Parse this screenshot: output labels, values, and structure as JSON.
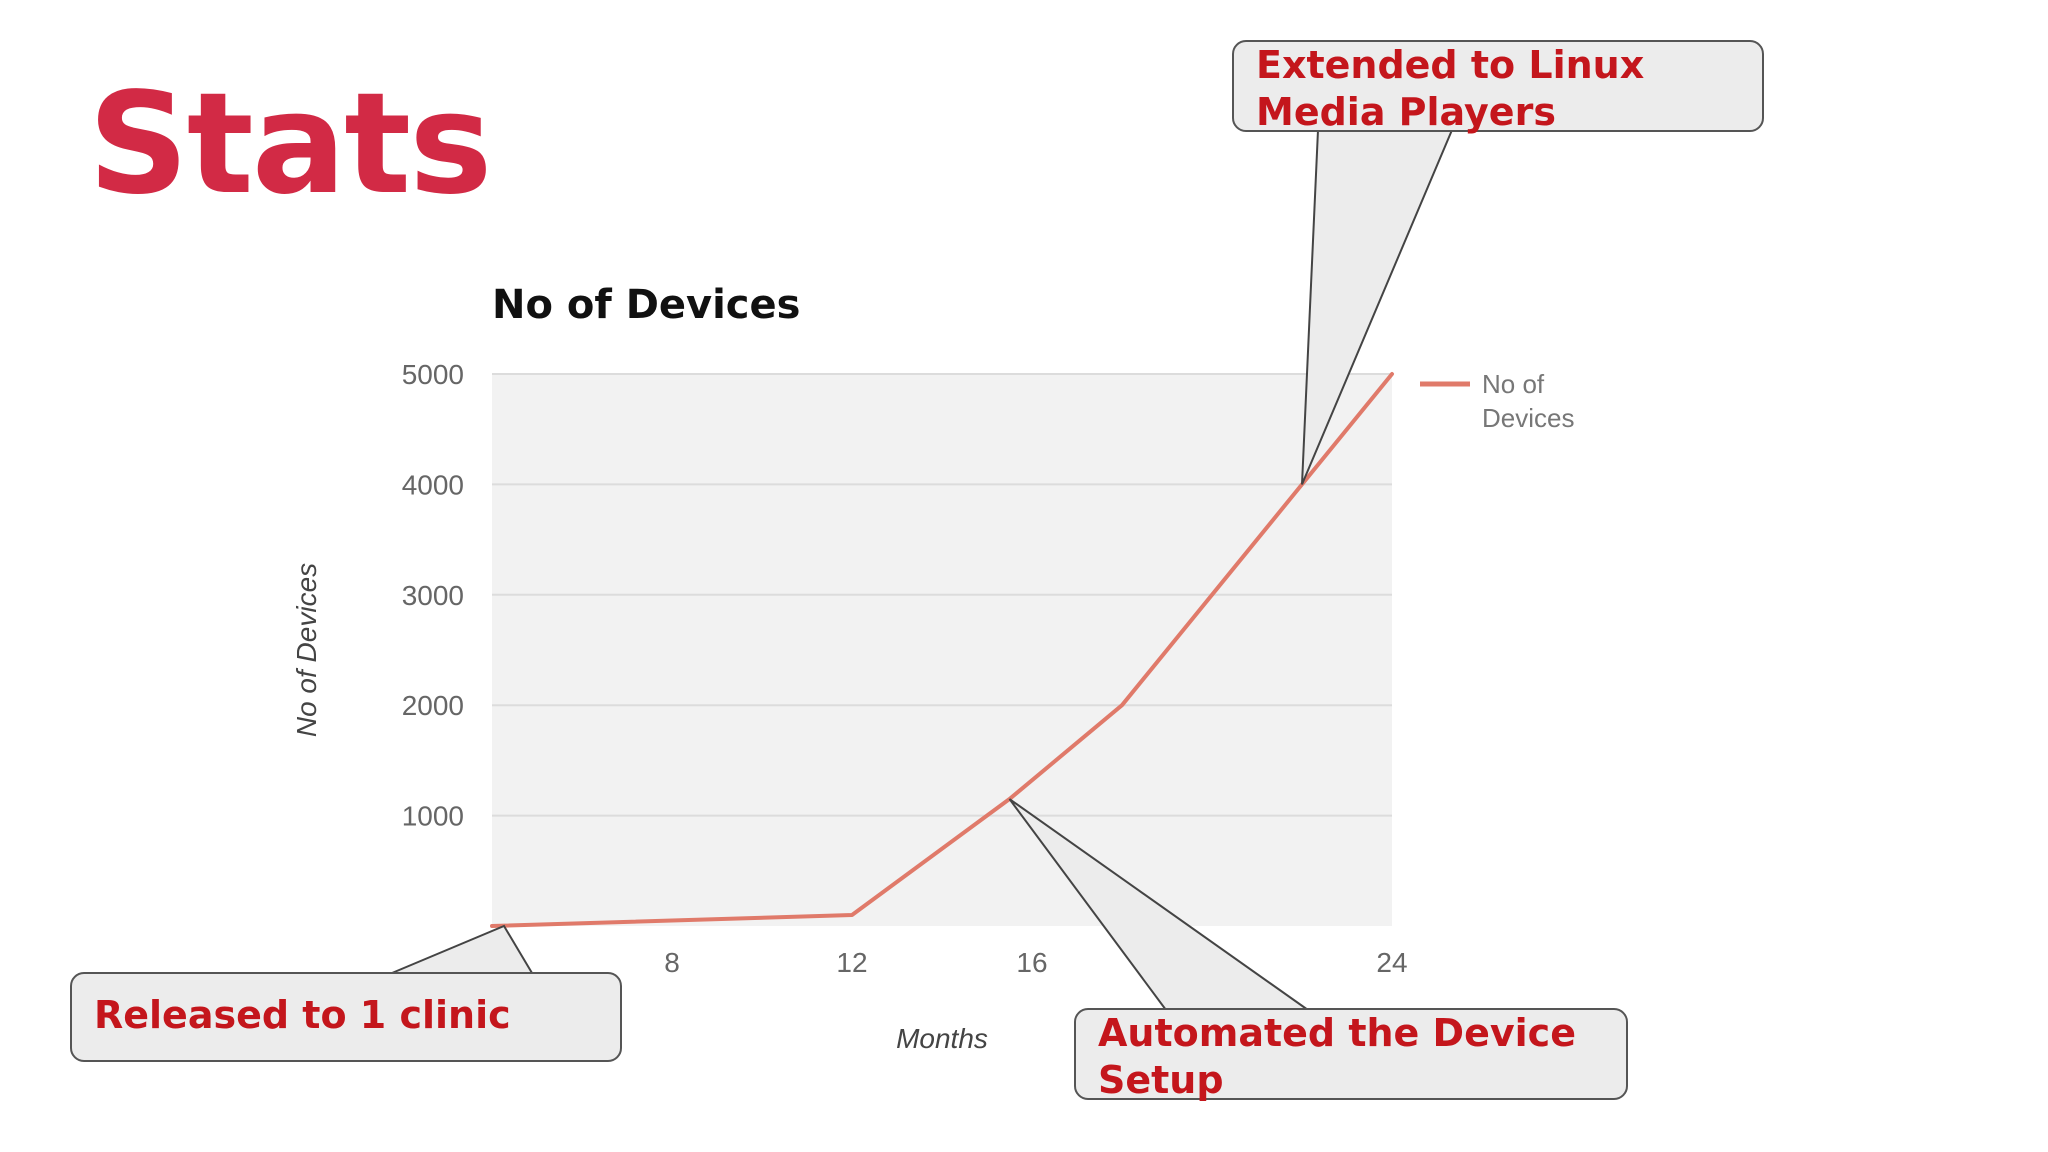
{
  "slide": {
    "title": "Stats"
  },
  "callouts": {
    "released": "Released to 1 clinic",
    "automated": "Automated the Device\nSetup",
    "extended": "Extended to Linux\nMedia Players"
  },
  "colors": {
    "title": "#d22a45",
    "callout_text": "#c4161c",
    "series_line": "#e07a6a",
    "plot_bg": "#f2f2f2",
    "gridline": "#dcdcdc"
  },
  "chart_data": {
    "type": "line",
    "title": "No of Devices",
    "xlabel": "Months",
    "ylabel": "No of Devices",
    "xlim": [
      4,
      24
    ],
    "ylim": [
      0,
      5000
    ],
    "x_ticks": [
      "8",
      "12",
      "16",
      "",
      "24"
    ],
    "x_tick_values": [
      8,
      12,
      16,
      20,
      24
    ],
    "y_ticks": [
      "1000",
      "2000",
      "3000",
      "4000",
      "5000"
    ],
    "y_tick_values": [
      1000,
      2000,
      3000,
      4000,
      5000
    ],
    "grid": true,
    "legend_position": "right",
    "series": [
      {
        "name": "No of Devices",
        "color": "#e07a6a",
        "x": [
          4,
          12,
          15.5,
          18,
          22,
          24
        ],
        "y": [
          0,
          100,
          1150,
          2000,
          4000,
          5000
        ]
      }
    ]
  }
}
